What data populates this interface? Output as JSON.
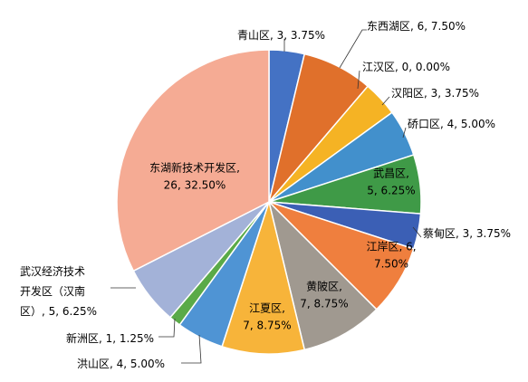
{
  "chart_data": {
    "type": "pie",
    "title": "",
    "slices": [
      {
        "name": "青山区",
        "value": 3,
        "percent": "3.75%",
        "color": "#4472c4",
        "label_lines": [
          "青山区, 3, 3.75%"
        ]
      },
      {
        "name": "东西湖区",
        "value": 6,
        "percent": "7.50%",
        "color": "#e0702b",
        "label_lines": [
          "东西湖区, 6, 7.50%"
        ]
      },
      {
        "name": "江汉区",
        "value": 0,
        "percent": "0.00%",
        "color": "#a5a5a5",
        "label_lines": [
          "江汉区, 0, 0.00%"
        ]
      },
      {
        "name": "汉阳区",
        "value": 3,
        "percent": "3.75%",
        "color": "#f5b324",
        "label_lines": [
          "汉阳区, 3, 3.75%"
        ]
      },
      {
        "name": "硚口区",
        "value": 4,
        "percent": "5.00%",
        "color": "#4290cc",
        "label_lines": [
          "硚口区, 4, 5.00%"
        ]
      },
      {
        "name": "武昌区",
        "value": 5,
        "percent": "6.25%",
        "color": "#3f9a47",
        "label_lines": [
          "武昌区,",
          "5, 6.25%"
        ]
      },
      {
        "name": "蔡甸区",
        "value": 3,
        "percent": "3.75%",
        "color": "#3b5fb5",
        "label_lines": [
          "蔡甸区, 3, 3.75%"
        ]
      },
      {
        "name": "江岸区",
        "value": 6,
        "percent": "7.50%",
        "color": "#ef7f3e",
        "label_lines": [
          "江岸区, 6,",
          "7.50%"
        ]
      },
      {
        "name": "黄陂区",
        "value": 7,
        "percent": "8.75%",
        "color": "#a09990",
        "label_lines": [
          "黄陂区,",
          "7, 8.75%"
        ]
      },
      {
        "name": "江夏区",
        "value": 7,
        "percent": "8.75%",
        "color": "#f7b43a",
        "label_lines": [
          "江夏区,",
          "7, 8.75%"
        ]
      },
      {
        "name": "洪山区",
        "value": 4,
        "percent": "5.00%",
        "color": "#4f94d4",
        "label_lines": [
          "洪山区, 4, 5.00%"
        ]
      },
      {
        "name": "新洲区",
        "value": 1,
        "percent": "1.25%",
        "color": "#5aaa48",
        "label_lines": [
          "新洲区, 1, 1.25%"
        ]
      },
      {
        "name": "武汉经济技术开发区（汉南区）",
        "value": 5,
        "percent": "6.25%",
        "color": "#a3b2d8",
        "label_lines": [
          "武汉经济技术",
          "开发区（汉南",
          "区）, 5, 6.25%"
        ]
      },
      {
        "name": "东湖新技术开发区",
        "value": 26,
        "percent": "32.50%",
        "color": "#f5ab94",
        "label_lines": [
          "东湖新技术开发区,",
          "26, 32.50%"
        ]
      }
    ]
  }
}
